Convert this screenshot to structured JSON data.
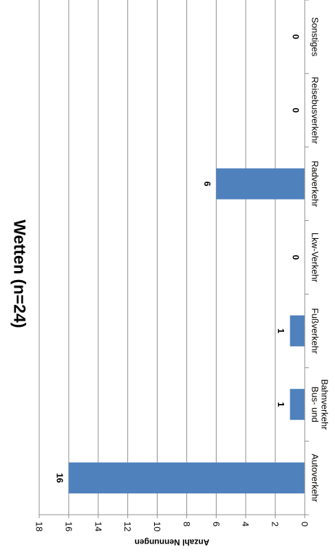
{
  "chart_data": {
    "type": "bar",
    "title": "Wetten (n=24)",
    "ylabel": "Anzahl Nennungen",
    "xlabel": "",
    "categories": [
      "Autoverkehr",
      "Bus- und Bahnverkehr",
      "Fußverkehr",
      "Lkw-Verkehr",
      "Radverkehr",
      "Reisebusverkehr",
      "Sonstiges"
    ],
    "category_lines": [
      [
        "Autoverkehr"
      ],
      [
        "Bus- und",
        "Bahnverkehr"
      ],
      [
        "Fußverkehr"
      ],
      [
        "Lkw-Verkehr"
      ],
      [
        "Radverkehr"
      ],
      [
        "Reisebusverkehr"
      ],
      [
        "Sonstiges"
      ]
    ],
    "values": [
      16,
      1,
      1,
      0,
      6,
      0,
      0
    ],
    "ylim": [
      0,
      18
    ],
    "yticks": [
      0,
      2,
      4,
      6,
      8,
      10,
      12,
      14,
      16,
      18
    ],
    "grid": true,
    "bar_color": "#4f81bd",
    "orientation": "rotated-90-clockwise"
  }
}
